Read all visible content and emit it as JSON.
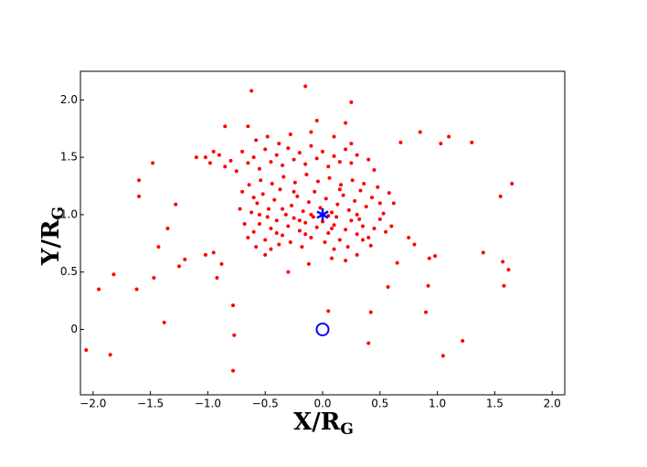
{
  "chart_data": {
    "type": "scatter",
    "xlabel": {
      "main": "X/R",
      "sub": "G"
    },
    "ylabel": {
      "main": "Y/R",
      "sub": "G"
    },
    "xlim": [
      -2.11,
      2.11
    ],
    "ylim": [
      -0.57,
      2.25
    ],
    "xticks": [
      {
        "value": -2,
        "label": "−2.0"
      },
      {
        "value": -1.5,
        "label": "−1.5"
      },
      {
        "value": -1,
        "label": "−1.0"
      },
      {
        "value": -0.5,
        "label": "−0.5"
      },
      {
        "value": 0,
        "label": "0.0"
      },
      {
        "value": 0.5,
        "label": "0.5"
      },
      {
        "value": 1,
        "label": "1.0"
      },
      {
        "value": 1.5,
        "label": "1.5"
      },
      {
        "value": 2,
        "label": "2.0"
      }
    ],
    "yticks": [
      0,
      {
        "value": 0.5,
        "label": "0.5"
      },
      {
        "value": 1,
        "label": "1.0"
      },
      {
        "value": 1.5,
        "label": "1.5"
      },
      {
        "value": 2,
        "label": "2.0"
      }
    ],
    "series": [
      {
        "color": "#ff0000",
        "marker": "dot",
        "points": [
          [
            -2.06,
            -0.18
          ],
          [
            -1.85,
            -0.22
          ],
          [
            -1.95,
            0.35
          ],
          [
            -1.82,
            0.48
          ],
          [
            -1.62,
            0.35
          ],
          [
            -1.6,
            1.16
          ],
          [
            -1.6,
            1.3
          ],
          [
            -1.48,
            1.45
          ],
          [
            -1.47,
            0.45
          ],
          [
            -1.43,
            0.72
          ],
          [
            -1.38,
            0.06
          ],
          [
            -1.35,
            0.88
          ],
          [
            -1.28,
            1.09
          ],
          [
            -1.25,
            0.55
          ],
          [
            -1.2,
            0.61
          ],
          [
            -1.1,
            1.5
          ],
          [
            -1.02,
            1.5
          ],
          [
            -1.02,
            0.65
          ],
          [
            -0.95,
            0.67
          ],
          [
            -0.92,
            0.45
          ],
          [
            -0.88,
            0.57
          ],
          [
            -0.78,
            0.21
          ],
          [
            -0.77,
            -0.05
          ],
          [
            -0.78,
            -0.36
          ],
          [
            -0.62,
            2.08
          ],
          [
            -0.15,
            2.12
          ],
          [
            0.25,
            1.98
          ],
          [
            0.05,
            0.16
          ],
          [
            0.4,
            -0.12
          ],
          [
            0.57,
            0.37
          ],
          [
            0.68,
            1.63
          ],
          [
            0.85,
            1.72
          ],
          [
            0.92,
            0.38
          ],
          [
            0.9,
            0.15
          ],
          [
            0.93,
            0.62
          ],
          [
            0.98,
            0.64
          ],
          [
            1.05,
            -0.23
          ],
          [
            1.03,
            1.62
          ],
          [
            1.1,
            1.68
          ],
          [
            1.22,
            -0.1
          ],
          [
            1.3,
            1.63
          ],
          [
            1.4,
            0.67
          ],
          [
            1.55,
            1.16
          ],
          [
            1.57,
            0.59
          ],
          [
            1.58,
            0.38
          ],
          [
            1.62,
            0.52
          ],
          [
            1.65,
            1.27
          ],
          [
            0.42,
            0.15
          ],
          [
            0.75,
            0.8
          ],
          [
            0.8,
            0.74
          ],
          [
            0.65,
            0.58
          ],
          [
            -0.85,
            1.77
          ],
          [
            -0.65,
            1.77
          ],
          [
            -0.65,
            0.8
          ],
          [
            -0.6,
            0.85
          ],
          [
            -0.55,
            0.92
          ],
          [
            -0.5,
            0.78
          ],
          [
            -0.45,
            0.88
          ],
          [
            -0.4,
            0.95
          ],
          [
            -0.35,
            0.82
          ],
          [
            -0.3,
            0.9
          ],
          [
            -0.25,
            0.97
          ],
          [
            -0.2,
            0.86
          ],
          [
            -0.15,
            0.93
          ],
          [
            -0.1,
            0.8
          ],
          [
            -0.05,
            0.89
          ],
          [
            0,
            0.94
          ],
          [
            0.05,
            0.84
          ],
          [
            0.1,
            0.91
          ],
          [
            0.15,
            0.78
          ],
          [
            0.2,
            0.87
          ],
          [
            0.25,
            0.95
          ],
          [
            0.3,
            0.83
          ],
          [
            0.35,
            0.9
          ],
          [
            0.4,
            0.8
          ],
          [
            0.45,
            0.88
          ],
          [
            0.5,
            0.96
          ],
          [
            -0.62,
            1.02
          ],
          [
            -0.57,
            1.1
          ],
          [
            -0.52,
            1.18
          ],
          [
            -0.47,
            1.05
          ],
          [
            -0.42,
            1.13
          ],
          [
            -0.37,
            1.22
          ],
          [
            -0.32,
            1.0
          ],
          [
            -0.27,
            1.08
          ],
          [
            -0.22,
            1.16
          ],
          [
            -0.17,
            1.03
          ],
          [
            -0.12,
            1.11
          ],
          [
            -0.07,
            1.2
          ],
          [
            -0.02,
            1.06
          ],
          [
            0.03,
            1.14
          ],
          [
            0.08,
            1.02
          ],
          [
            0.13,
            1.09
          ],
          [
            0.18,
            1.17
          ],
          [
            0.23,
            1.04
          ],
          [
            0.28,
            1.12
          ],
          [
            0.33,
            1.21
          ],
          [
            0.38,
            1.07
          ],
          [
            0.43,
            1.15
          ],
          [
            0.48,
            1.24
          ],
          [
            0.53,
            1.01
          ],
          [
            0.58,
            1.19
          ],
          [
            -0.68,
            0.92
          ],
          [
            -0.58,
            0.72
          ],
          [
            -0.48,
            0.98
          ],
          [
            -0.38,
            0.74
          ],
          [
            -0.28,
            0.76
          ],
          [
            -0.18,
            0.72
          ],
          [
            -0.08,
            0.98
          ],
          [
            0.02,
            0.76
          ],
          [
            0.12,
            0.98
          ],
          [
            0.22,
            0.72
          ],
          [
            0.32,
            0.96
          ],
          [
            0.42,
            0.73
          ],
          [
            -0.64,
            1.26
          ],
          [
            -0.54,
            1.3
          ],
          [
            -0.44,
            1.27
          ],
          [
            -0.34,
            1.33
          ],
          [
            -0.24,
            1.28
          ],
          [
            -0.14,
            1.35
          ],
          [
            -0.04,
            1.29
          ],
          [
            0.06,
            1.32
          ],
          [
            0.16,
            1.26
          ],
          [
            0.26,
            1.3
          ],
          [
            0.36,
            1.27
          ],
          [
            -0.9,
            1.52
          ],
          [
            -0.85,
            1.42
          ],
          [
            -0.8,
            1.47
          ],
          [
            -0.75,
            1.38
          ],
          [
            -0.7,
            1.55
          ],
          [
            -0.65,
            1.45
          ],
          [
            -0.6,
            1.5
          ],
          [
            -0.55,
            1.4
          ],
          [
            -0.5,
            1.57
          ],
          [
            -0.45,
            1.46
          ],
          [
            -0.4,
            1.52
          ],
          [
            -0.35,
            1.43
          ],
          [
            -0.3,
            1.58
          ],
          [
            -0.25,
            1.48
          ],
          [
            -0.2,
            1.54
          ],
          [
            -0.15,
            1.44
          ],
          [
            -0.1,
            1.6
          ],
          [
            -0.05,
            1.49
          ],
          [
            0,
            1.55
          ],
          [
            0.05,
            1.42
          ],
          [
            0.1,
            1.51
          ],
          [
            0.15,
            1.46
          ],
          [
            0.2,
            1.57
          ],
          [
            0.25,
            1.45
          ],
          [
            0.3,
            1.52
          ],
          [
            0.4,
            1.48
          ],
          [
            0.45,
            1.39
          ],
          [
            -0.98,
            1.45
          ],
          [
            -0.95,
            1.55
          ],
          [
            -0.58,
            1.65
          ],
          [
            -0.48,
            1.68
          ],
          [
            -0.38,
            1.62
          ],
          [
            -0.28,
            1.7
          ],
          [
            -0.1,
            1.72
          ],
          [
            0.1,
            1.68
          ],
          [
            0.2,
            1.8
          ],
          [
            -0.05,
            1.82
          ],
          [
            0.25,
            1.62
          ],
          [
            -0.7,
            1.2
          ],
          [
            -0.6,
            1.15
          ],
          [
            0.55,
            0.85
          ],
          [
            0.6,
            0.9
          ],
          [
            0.62,
            1.1
          ],
          [
            -0.72,
            1.05
          ],
          [
            -0.35,
            1.05
          ],
          [
            0.15,
            1.22
          ],
          [
            -0.2,
            0.95
          ],
          [
            0.05,
            0.99
          ],
          [
            -0.1,
            1.0
          ],
          [
            0.08,
            0.88
          ],
          [
            -0.15,
            0.83
          ],
          [
            -0.4,
            0.84
          ],
          [
            0.3,
            1.0
          ],
          [
            -0.55,
            1.0
          ],
          [
            0.5,
            1.1
          ],
          [
            -0.25,
            1.2
          ],
          [
            0.35,
            0.78
          ],
          [
            -0.45,
            0.7
          ],
          [
            0.1,
            0.7
          ],
          [
            -0.3,
            0.5
          ],
          [
            -0.12,
            0.57
          ],
          [
            0.08,
            0.62
          ],
          [
            0.2,
            0.6
          ],
          [
            0.3,
            0.65
          ],
          [
            -0.5,
            0.65
          ]
        ]
      },
      {
        "color": "#0000ff",
        "marker": "star",
        "points": [
          [
            0,
            1
          ]
        ]
      },
      {
        "color": "#0000ff",
        "marker": "circle",
        "points": [
          [
            0,
            0
          ]
        ]
      }
    ]
  }
}
